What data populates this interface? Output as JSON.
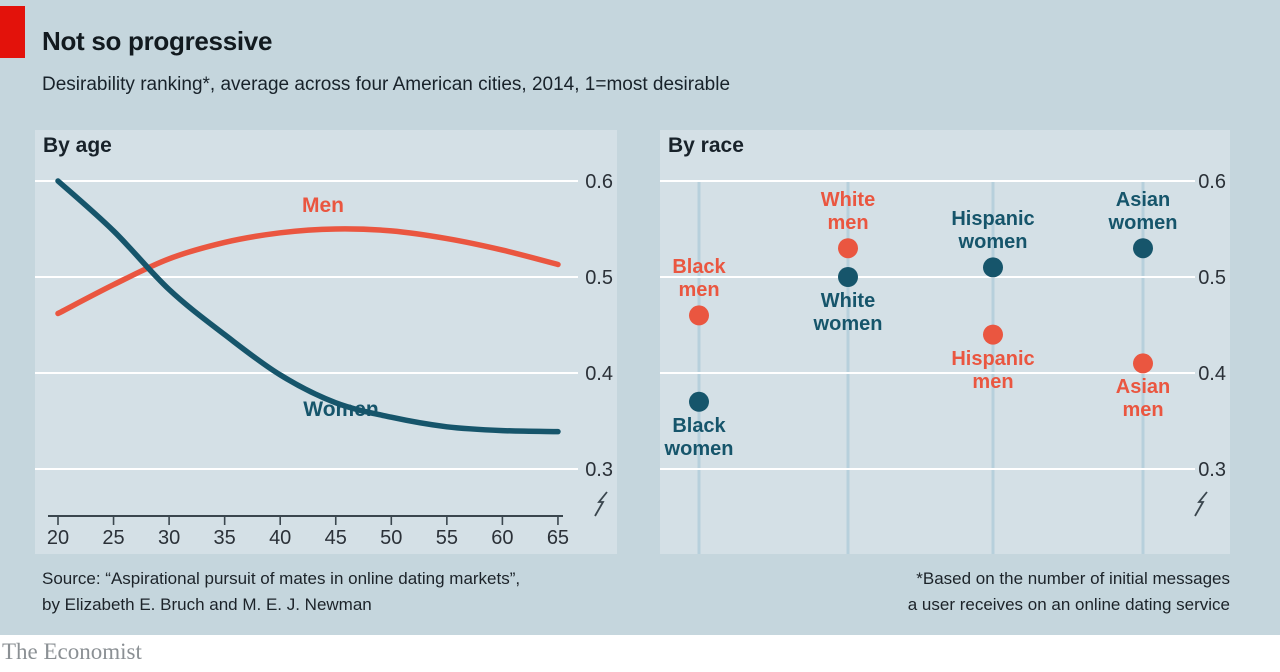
{
  "header": {
    "title": "Not so progressive",
    "subtitle": "Desirability ranking*, average across four American cities, 2014, 1=most desirable"
  },
  "colors": {
    "economist_red": "#e3120b",
    "men": "#ea5640",
    "women": "#16556b",
    "page_bg": "#c5d6dd",
    "panel_bg": "#d4e0e6",
    "gridline": "#ffffff",
    "column_line": "#b7d0dc",
    "axis": "#3a464e",
    "tick_text": "#2b3138"
  },
  "chart_data": [
    {
      "type": "line",
      "title": "By age",
      "x": [
        20,
        25,
        30,
        35,
        40,
        45,
        50,
        55,
        60,
        65
      ],
      "series": [
        {
          "name": "Men",
          "color_key": "men",
          "values": [
            0.462,
            0.492,
            0.519,
            0.536,
            0.546,
            0.55,
            0.548,
            0.54,
            0.528,
            0.513
          ]
        },
        {
          "name": "Women",
          "color_key": "women",
          "values": [
            0.6,
            0.548,
            0.487,
            0.44,
            0.398,
            0.369,
            0.354,
            0.344,
            0.34,
            0.339
          ]
        }
      ],
      "ylim": [
        0.3,
        0.6
      ],
      "yticks": [
        "0.6",
        "0.5",
        "0.4",
        "0.3"
      ],
      "grid": true,
      "axis_break": true
    },
    {
      "type": "scatter",
      "title": "By race",
      "columns": [
        "Black",
        "White",
        "Hispanic",
        "Asian"
      ],
      "points": [
        {
          "column": "Black",
          "series": "men",
          "label_lines": "Black\nmen",
          "value": 0.46,
          "label_position": "above"
        },
        {
          "column": "Black",
          "series": "women",
          "label_lines": "Black\nwomen",
          "value": 0.37,
          "label_position": "below"
        },
        {
          "column": "White",
          "series": "men",
          "label_lines": "White\nmen",
          "value": 0.53,
          "label_position": "above"
        },
        {
          "column": "White",
          "series": "women",
          "label_lines": "White\nwomen",
          "value": 0.5,
          "label_position": "below"
        },
        {
          "column": "Hispanic",
          "series": "women",
          "label_lines": "Hispanic\nwomen",
          "value": 0.51,
          "label_position": "above"
        },
        {
          "column": "Hispanic",
          "series": "men",
          "label_lines": "Hispanic\nmen",
          "value": 0.44,
          "label_position": "below"
        },
        {
          "column": "Asian",
          "series": "women",
          "label_lines": "Asian\nwomen",
          "value": 0.53,
          "label_position": "above"
        },
        {
          "column": "Asian",
          "series": "men",
          "label_lines": "Asian\nmen",
          "value": 0.41,
          "label_position": "below"
        }
      ],
      "ylim": [
        0.3,
        0.6
      ],
      "yticks": [
        "0.6",
        "0.5",
        "0.4",
        "0.3"
      ],
      "grid": true,
      "axis_break": true
    }
  ],
  "footer": {
    "source_line1": "Source: “Aspirational pursuit of mates in online dating markets”,",
    "source_line2": "by Elizabeth E. Bruch and M. E. J. Newman",
    "footnote_line1": "*Based on the number of initial messages",
    "footnote_line2": "a user receives on an online dating service",
    "brand": "The Economist"
  }
}
